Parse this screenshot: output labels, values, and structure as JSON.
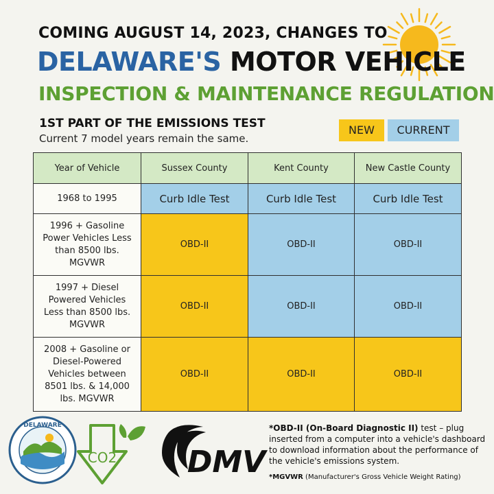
{
  "header": {
    "line1": "COMING AUGUST 14, 2023, CHANGES TO",
    "line2_blue": "DELAWARE'S",
    "line2_dark": " MOTOR VEHICLE",
    "line3": "INSPECTION & MAINTENANCE REGULATION"
  },
  "subheading": {
    "title": "1ST PART OF THE EMISSIONS TEST",
    "text": "Current 7 model years remain the same."
  },
  "legend": {
    "new_label": "NEW",
    "current_label": "CURRENT",
    "colors": {
      "new": "#f7c61a",
      "current": "#a3cfe8",
      "header": "#d4e9c5"
    }
  },
  "table": {
    "headers": [
      "Year of Vehicle",
      "Sussex County",
      "Kent County",
      "New Castle County"
    ],
    "rows": [
      {
        "year": "1968 to 1995",
        "cells": [
          {
            "text": "Curb Idle Test",
            "status": "current"
          },
          {
            "text": "Curb Idle Test",
            "status": "current"
          },
          {
            "text": "Curb Idle Test",
            "status": "current"
          }
        ]
      },
      {
        "year": "1996 + Gasoline Power Vehicles Less than 8500 lbs. MGVWR",
        "cells": [
          {
            "text": "OBD-II",
            "status": "new"
          },
          {
            "text": "OBD-II",
            "status": "current"
          },
          {
            "text": "OBD-II",
            "status": "current"
          }
        ]
      },
      {
        "year": "1997 + Diesel Powered Vehicles Less than 8500 lbs. MGVWR",
        "cells": [
          {
            "text": "OBD-II",
            "status": "new"
          },
          {
            "text": "OBD-II",
            "status": "current"
          },
          {
            "text": "OBD-II",
            "status": "current"
          }
        ]
      },
      {
        "year": "2008 + Gasoline or Diesel-Powered Vehicles between 8501 lbs. & 14,000 lbs. MGVWR",
        "cells": [
          {
            "text": "OBD-II",
            "status": "new"
          },
          {
            "text": "OBD-II",
            "status": "new"
          },
          {
            "text": "OBD-II",
            "status": "new"
          }
        ]
      }
    ]
  },
  "footer": {
    "seal_text": "DELAWARE",
    "co2_text": "CO2",
    "dmv_text": "DMV",
    "obd_term": "*OBD-II (On-Board Diagnostic II)",
    "obd_desc": " test – plug inserted from a computer into a vehicle's dashboard to download information about the performance of the vehicle's emissions system.",
    "mgvwr_term": "*MGVWR",
    "mgvwr_desc": " (Manufacturer's Gross Vehicle Weight Rating)"
  }
}
